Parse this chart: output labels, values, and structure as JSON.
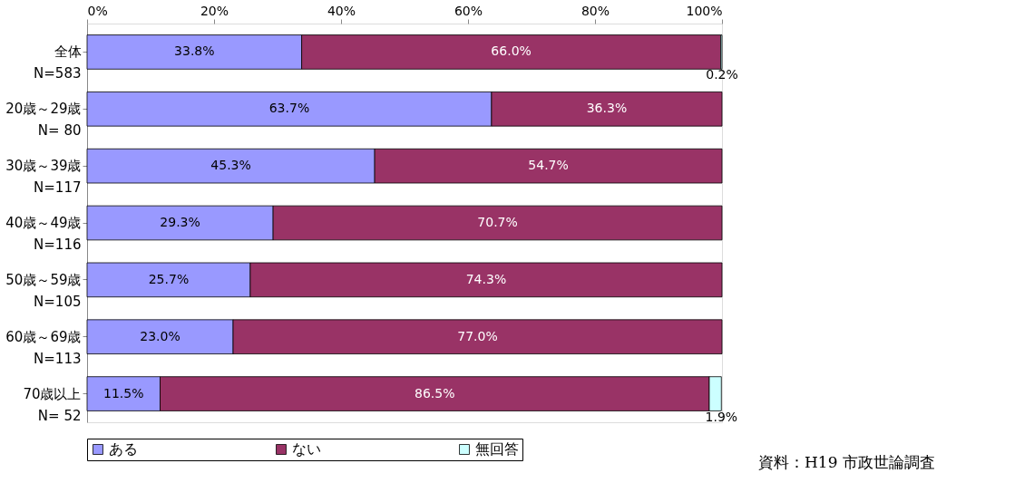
{
  "chart_data": {
    "type": "bar",
    "orientation": "horizontal",
    "stacked": true,
    "categories": [
      "全体\nN=583",
      "20歳～29歳\nN= 80",
      "30歳～39歳\nN=117",
      "40歳～49歳\nN=116",
      "50歳～59歳\nN=105",
      "60歳～69歳\nN=113",
      "70歳以上\nN= 52"
    ],
    "series": [
      {
        "name": "ある",
        "color": "#9999ff",
        "values": [
          33.8,
          63.7,
          45.3,
          29.3,
          25.7,
          23.0,
          11.5
        ],
        "value_labels": [
          "33.8%",
          "63.7%",
          "45.3%",
          "29.3%",
          "25.7%",
          "23.0%",
          "11.5%"
        ]
      },
      {
        "name": "ない",
        "color": "#993366",
        "values": [
          66.0,
          36.3,
          54.7,
          70.7,
          74.3,
          77.0,
          86.5
        ],
        "value_labels": [
          "66.0%",
          "36.3%",
          "54.7%",
          "70.7%",
          "74.3%",
          "77.0%",
          "86.5%"
        ]
      },
      {
        "name": "無回答",
        "color": "#ccffff",
        "values": [
          0.2,
          0,
          0,
          0,
          0,
          0,
          1.9
        ],
        "value_labels": [
          "0.2%",
          null,
          null,
          null,
          null,
          null,
          "1.9%"
        ]
      }
    ],
    "xlim": [
      0,
      100
    ],
    "xticks": [
      {
        "value": 0,
        "label": "0%"
      },
      {
        "value": 20,
        "label": "20%"
      },
      {
        "value": 40,
        "label": "40%"
      },
      {
        "value": 60,
        "label": "60%"
      },
      {
        "value": 80,
        "label": "80%"
      },
      {
        "value": 100,
        "label": "100%"
      }
    ],
    "grid": false,
    "legend": "bottom",
    "annotations": [
      "資料：H19 市政世論調査"
    ]
  }
}
